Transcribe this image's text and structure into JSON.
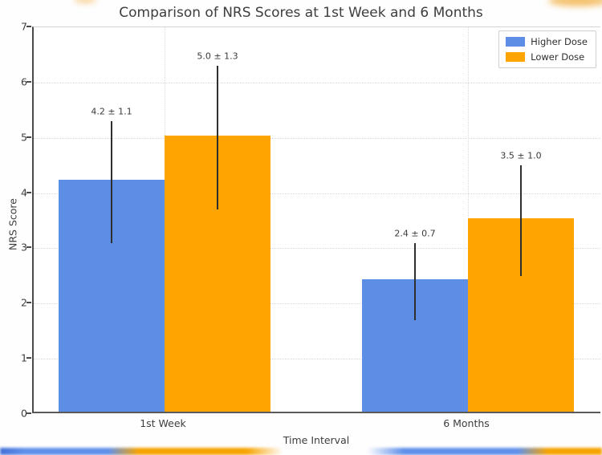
{
  "chart_data": {
    "type": "bar",
    "title": "Comparison of NRS Scores at 1st Week and 6 Months",
    "xlabel": "Time Interval",
    "ylabel": "NRS Score",
    "categories": [
      "1st Week",
      "6 Months"
    ],
    "series": [
      {
        "name": "Higher Dose",
        "color": "#5c8ee6",
        "values": [
          4.2,
          2.4
        ],
        "errors": [
          1.1,
          0.7
        ],
        "labels": [
          "4.2 ± 1.1",
          "2.4 ± 0.7"
        ]
      },
      {
        "name": "Lower Dose",
        "color": "#ffa502",
        "values": [
          5.0,
          3.5
        ],
        "errors": [
          1.3,
          1.0
        ],
        "labels": [
          "5.0 ± 1.3",
          "3.5 ± 1.0"
        ]
      }
    ],
    "ylim": [
      0,
      7
    ],
    "yticks": [
      0,
      1,
      2,
      3,
      4,
      5,
      6,
      7
    ],
    "grid": true,
    "grid_style": "dotted",
    "legend_position": "upper right",
    "error_bar_color": "#2f2f2f"
  }
}
